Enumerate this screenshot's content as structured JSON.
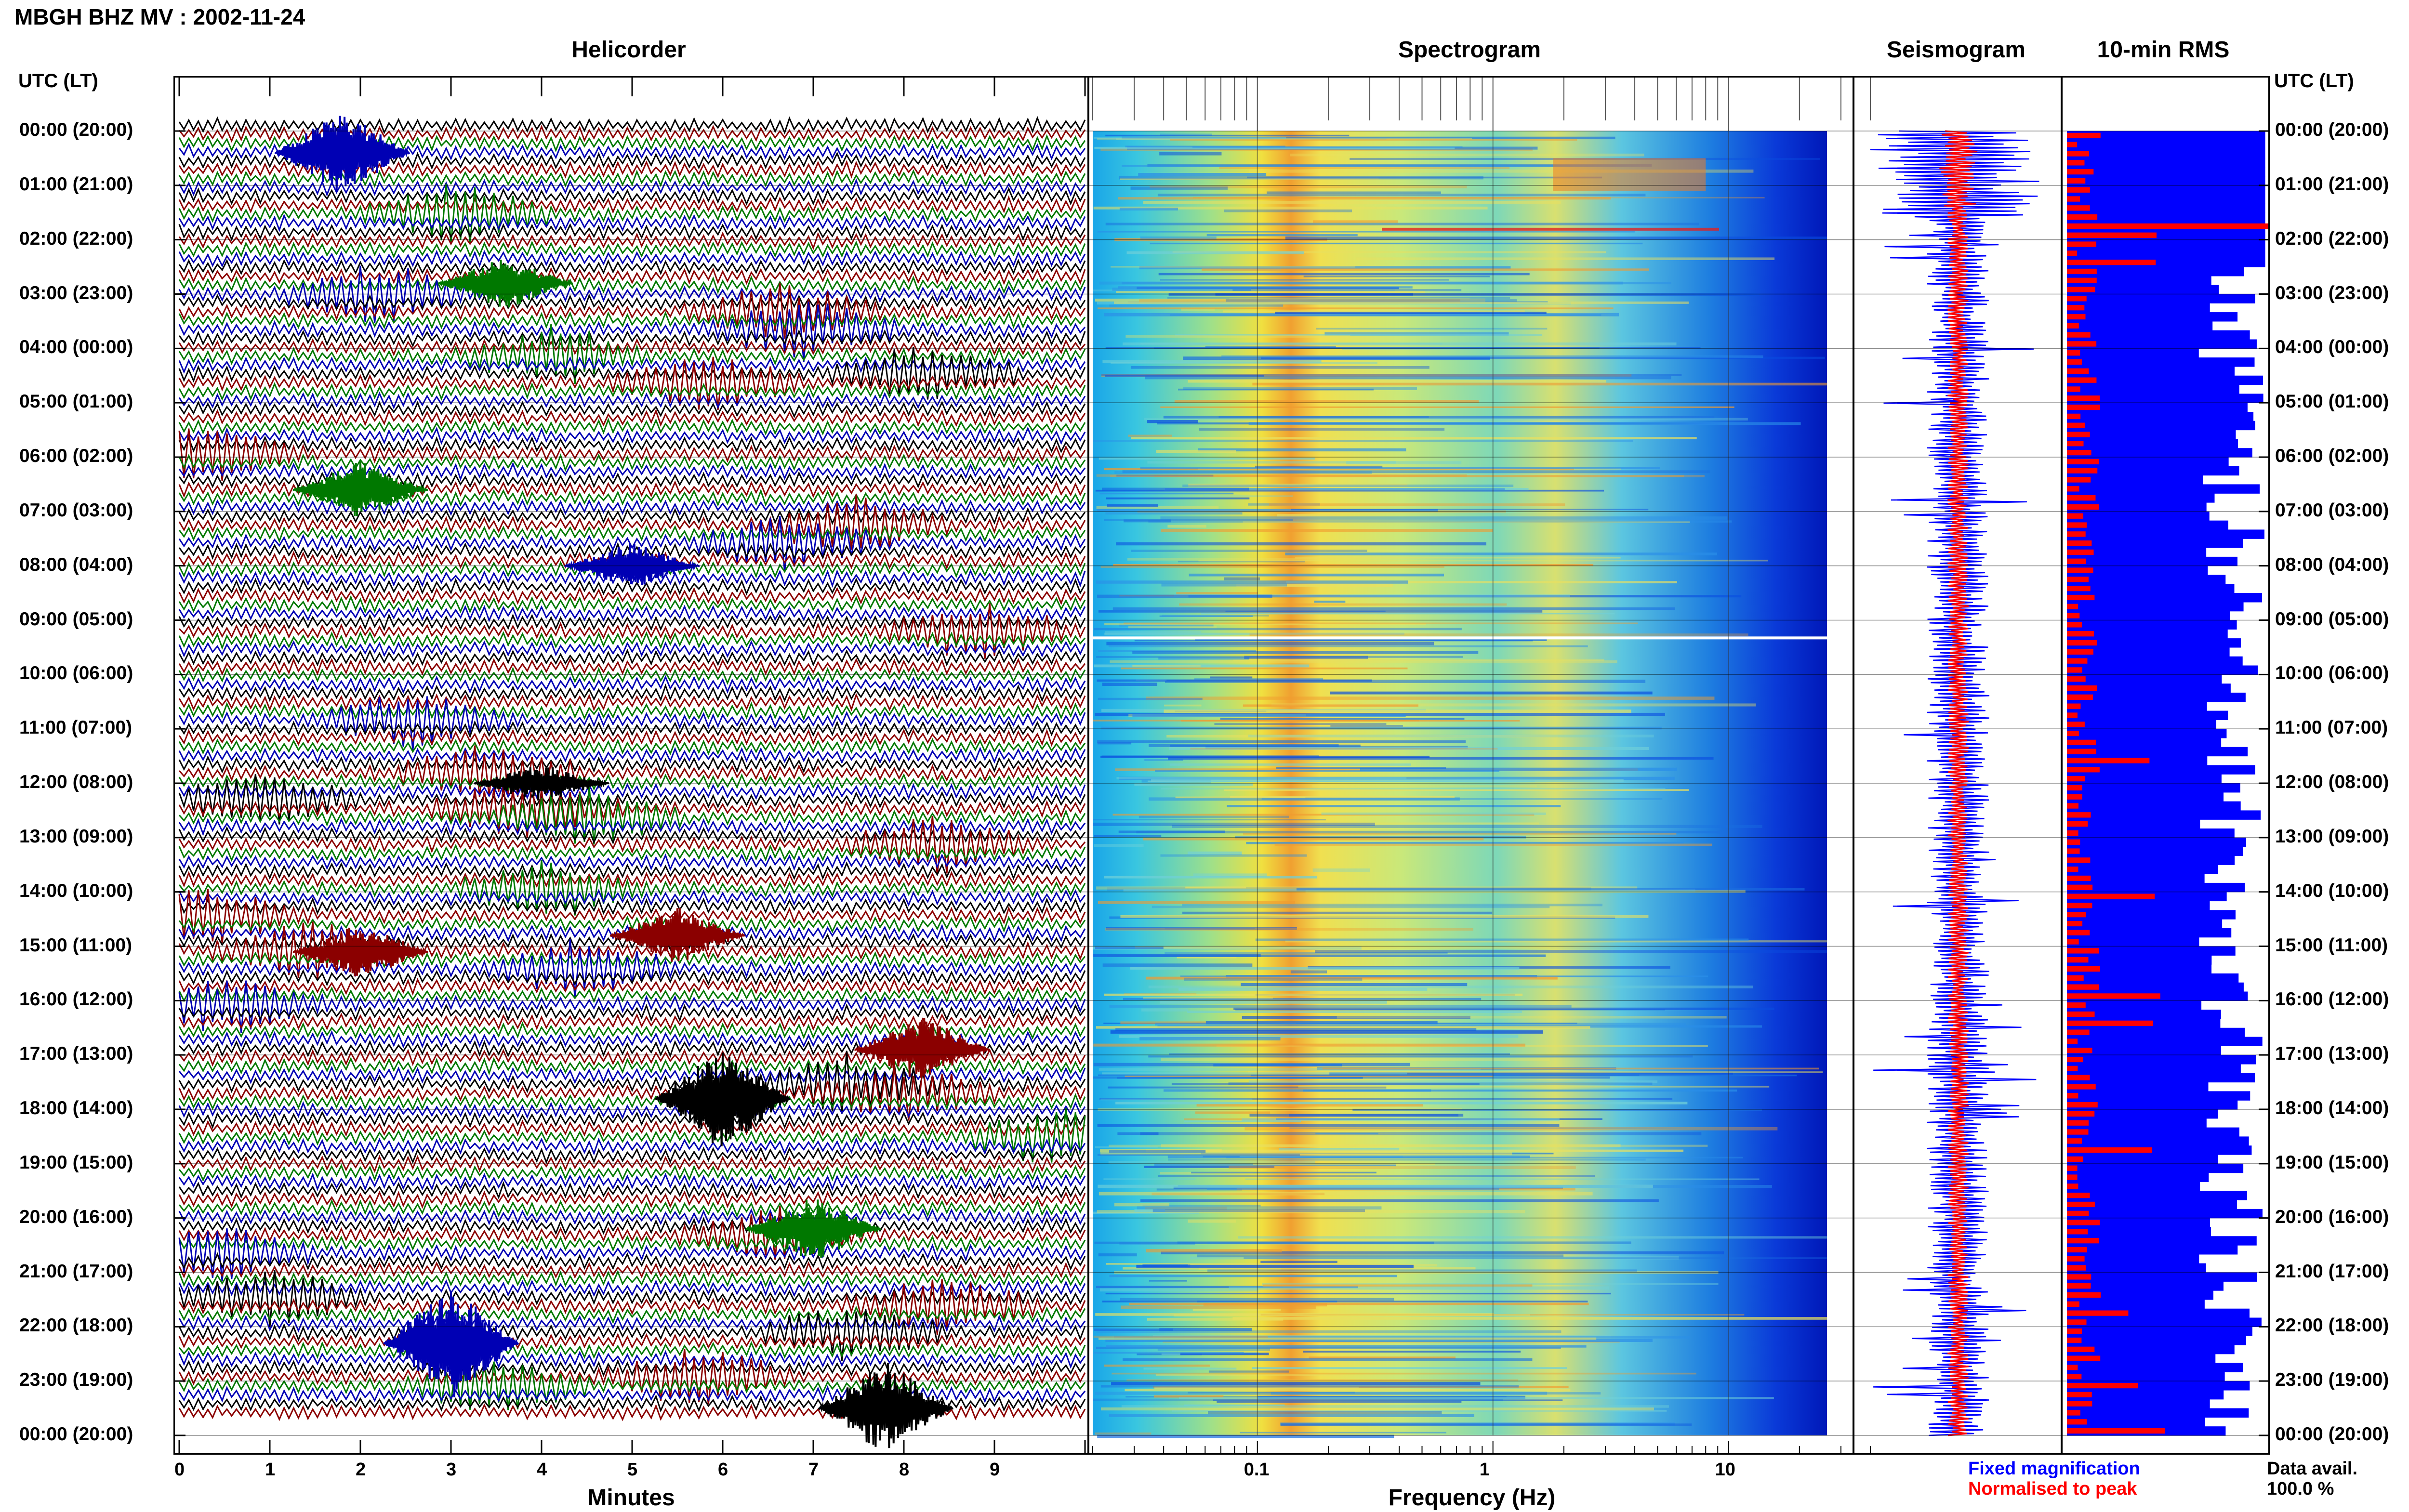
{
  "header": {
    "title": "MBGH BHZ MV : 2002-11-24",
    "utc_label": "UTC (LT)"
  },
  "panels": {
    "helicorder": "Helicorder",
    "spectrogram": "Spectrogram",
    "seismogram": "Seismogram",
    "rms": "10-min RMS"
  },
  "axes": {
    "helicorder_xlabel": "Minutes",
    "spectrogram_xlabel": "Frequency (Hz)"
  },
  "legend": {
    "fixed": "Fixed magnification",
    "normalised": "Normalised to peak",
    "data_avail_label": "Data avail.",
    "data_avail_value": "100.0 %"
  },
  "colors": {
    "black": "#000000",
    "red": "#8b0000",
    "green": "#007800",
    "blue": "#0000b4",
    "bright_blue": "#0000ff",
    "bright_red": "#ff0000"
  },
  "chart_data": [
    {
      "type": "line",
      "panel": "Helicorder",
      "xlabel": "Minutes",
      "x_ticks": [
        "0",
        "1",
        "2",
        "3",
        "4",
        "5",
        "6",
        "7",
        "8",
        "9"
      ],
      "xlim": [
        0,
        10
      ],
      "rows_per_hour": 6,
      "trace_colors_cycle": [
        "black",
        "red",
        "green",
        "blue"
      ],
      "time_labels": [
        "00:00 (20:00)",
        "01:00 (21:00)",
        "02:00 (22:00)",
        "03:00 (23:00)",
        "04:00 (00:00)",
        "05:00 (01:00)",
        "06:00 (02:00)",
        "07:00 (03:00)",
        "08:00 (04:00)",
        "09:00 (05:00)",
        "10:00 (06:00)",
        "11:00 (07:00)",
        "12:00 (08:00)",
        "13:00 (09:00)",
        "14:00 (10:00)",
        "15:00 (11:00)",
        "16:00 (12:00)",
        "17:00 (13:00)",
        "18:00 (14:00)",
        "19:00 (15:00)",
        "20:00 (16:00)",
        "21:00 (17:00)",
        "22:00 (18:00)",
        "23:00 (19:00)",
        "00:00 (20:00)"
      ]
    },
    {
      "type": "heatmap",
      "panel": "Spectrogram",
      "xlabel": "Frequency (Hz)",
      "x_scale": "log",
      "x_ticks": [
        "0.1",
        "1",
        "10"
      ],
      "xlim": [
        0.02,
        40
      ]
    },
    {
      "type": "line",
      "panel": "Seismogram",
      "series": [
        {
          "name": "Fixed magnification",
          "color": "blue"
        },
        {
          "name": "Normalised to peak",
          "color": "red"
        }
      ]
    },
    {
      "type": "bar",
      "panel": "10-min RMS",
      "orientation": "horizontal",
      "bins": 144,
      "series_colors": [
        "bright_blue",
        "bright_red"
      ]
    }
  ]
}
